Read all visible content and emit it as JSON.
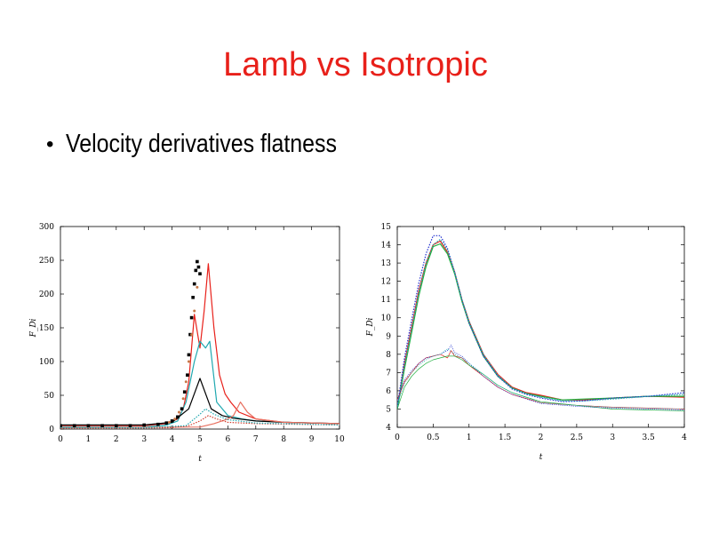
{
  "slide": {
    "title": "Lamb vs Isotropic",
    "bullet": "Velocity derivatives flatness"
  },
  "colors": {
    "title": "#e8201a"
  },
  "chart_data": [
    {
      "type": "line",
      "title": "",
      "xlabel": "t",
      "ylabel": "F_Di",
      "xlim": [
        0,
        10
      ],
      "ylim": [
        0,
        300
      ],
      "xticks": [
        0,
        1,
        2,
        3,
        4,
        5,
        6,
        7,
        8,
        9,
        10
      ],
      "yticks": [
        0,
        50,
        100,
        150,
        200,
        250,
        300
      ],
      "grid": false,
      "series": [
        {
          "color": "#e8201a",
          "style": "solid",
          "x": [
            0,
            1,
            2,
            3,
            3.8,
            4.2,
            4.4,
            4.6,
            4.8,
            5.0,
            5.15,
            5.3,
            5.5,
            5.7,
            5.9,
            6.1,
            6.4,
            7,
            8,
            10
          ],
          "y": [
            5,
            5,
            5,
            5,
            8,
            15,
            30,
            70,
            170,
            120,
            175,
            245,
            150,
            80,
            52,
            40,
            25,
            15,
            10,
            8
          ]
        },
        {
          "color": "#20a8b0",
          "style": "solid",
          "x": [
            0,
            1,
            2,
            3,
            3.8,
            4.2,
            4.5,
            4.8,
            5.0,
            5.2,
            5.35,
            5.6,
            6,
            6.5,
            7,
            8,
            10
          ],
          "y": [
            3,
            3,
            3,
            3,
            6,
            12,
            40,
            100,
            130,
            120,
            130,
            40,
            20,
            15,
            12,
            10,
            8
          ]
        },
        {
          "color": "#000000",
          "style": "solid",
          "x": [
            0,
            1,
            2,
            3,
            4,
            4.6,
            5.0,
            5.4,
            5.8,
            6.2,
            7,
            8,
            9,
            10
          ],
          "y": [
            6,
            6,
            6,
            6,
            10,
            30,
            75,
            30,
            20,
            16,
            12,
            10,
            9,
            8
          ]
        },
        {
          "color": "#e87060",
          "style": "solid",
          "x": [
            0,
            5,
            5.5,
            6,
            6.2,
            6.45,
            6.7,
            7,
            8,
            10
          ],
          "y": [
            2,
            3,
            8,
            15,
            20,
            40,
            25,
            15,
            10,
            8
          ]
        },
        {
          "color": "#d04030",
          "style": "dotted",
          "x": [
            0,
            2,
            4,
            4.6,
            5,
            5.3,
            5.6,
            6,
            7,
            10
          ],
          "y": [
            1,
            1,
            2,
            5,
            12,
            20,
            15,
            10,
            8,
            6
          ]
        },
        {
          "color": "#20a8b0",
          "style": "dotted",
          "x": [
            0,
            3,
            4.5,
            5,
            5.2,
            5.5,
            6,
            7,
            10
          ],
          "y": [
            2,
            2,
            5,
            22,
            30,
            22,
            14,
            9,
            6
          ]
        },
        {
          "color": "#000000",
          "style": "squares",
          "x": [
            0,
            0.5,
            1,
            1.5,
            2,
            2.5,
            3,
            3.5,
            3.8,
            4.0,
            4.2,
            4.35,
            4.45,
            4.55,
            4.6,
            4.65,
            4.7,
            4.75,
            4.8,
            4.85,
            4.9,
            4.95,
            5.0
          ],
          "y": [
            5,
            5,
            5,
            5,
            5,
            5,
            6,
            7,
            9,
            12,
            18,
            30,
            55,
            80,
            110,
            140,
            165,
            195,
            215,
            235,
            248,
            240,
            230
          ]
        },
        {
          "color": "#c87848",
          "style": "dots",
          "x": [
            3.9,
            4.1,
            4.25,
            4.4,
            4.5,
            4.6,
            4.7,
            4.8,
            4.9
          ],
          "y": [
            10,
            15,
            25,
            45,
            70,
            100,
            140,
            175,
            210
          ]
        }
      ]
    },
    {
      "type": "line",
      "title": "",
      "xlabel": "t",
      "ylabel": "F_Di",
      "xlim": [
        0,
        4
      ],
      "ylim": [
        4,
        15
      ],
      "xticks": [
        0,
        0.5,
        1,
        1.5,
        2,
        2.5,
        3,
        3.5,
        4
      ],
      "yticks": [
        4,
        5,
        6,
        7,
        8,
        9,
        10,
        11,
        12,
        13,
        14,
        15
      ],
      "grid": false,
      "series": [
        {
          "color": "#e8201a",
          "style": "solid",
          "x": [
            0,
            0.1,
            0.2,
            0.3,
            0.4,
            0.5,
            0.6,
            0.7,
            0.8,
            0.9,
            1.0,
            1.2,
            1.4,
            1.6,
            1.8,
            2.0,
            2.3,
            2.6,
            3.0,
            3.5,
            4.0
          ],
          "y": [
            5,
            7.5,
            9.5,
            11.5,
            13,
            14,
            14.2,
            13.6,
            12.5,
            11,
            9.8,
            8,
            6.9,
            6.2,
            5.9,
            5.75,
            5.5,
            5.5,
            5.6,
            5.7,
            5.65
          ]
        },
        {
          "color": "#20b040",
          "style": "solid",
          "x": [
            0,
            0.1,
            0.2,
            0.3,
            0.4,
            0.5,
            0.6,
            0.7,
            0.8,
            0.9,
            1.0,
            1.2,
            1.4,
            1.6,
            1.8,
            2.0,
            2.3,
            2.6,
            3.0,
            3.5,
            4.0
          ],
          "y": [
            5,
            7.2,
            9.2,
            11.2,
            12.8,
            13.9,
            14.05,
            13.5,
            12.4,
            10.9,
            9.7,
            7.9,
            6.8,
            6.15,
            5.85,
            5.7,
            5.5,
            5.55,
            5.6,
            5.7,
            5.7
          ]
        },
        {
          "color": "#2030d0",
          "style": "dotted",
          "x": [
            0,
            0.1,
            0.2,
            0.3,
            0.4,
            0.5,
            0.6,
            0.7,
            0.8,
            0.9,
            1.0,
            1.2,
            1.4,
            1.6,
            1.8,
            2.0,
            2.3,
            2.6,
            3.0,
            3.5,
            4.0
          ],
          "y": [
            5.1,
            7.8,
            9.9,
            11.9,
            13.5,
            14.5,
            14.5,
            13.8,
            12.5,
            11,
            9.7,
            7.9,
            6.8,
            6.1,
            5.8,
            5.6,
            5.4,
            5.45,
            5.6,
            5.7,
            5.9
          ]
        },
        {
          "color": "#20a8b0",
          "style": "dotted",
          "x": [
            0,
            0.1,
            0.2,
            0.3,
            0.4,
            0.5,
            0.6,
            0.7,
            0.8,
            0.9,
            1.0,
            1.2,
            1.4,
            1.6,
            1.8,
            2.0,
            2.3,
            2.6,
            3.0,
            3.5,
            4.0
          ],
          "y": [
            5,
            7.4,
            9.4,
            11.4,
            13,
            14,
            14.3,
            13.7,
            12.5,
            11,
            9.8,
            8,
            6.85,
            6.15,
            5.85,
            5.65,
            5.45,
            5.45,
            5.55,
            5.7,
            5.8
          ]
        },
        {
          "color": "#e8201a",
          "style": "thin",
          "x": [
            0,
            0.1,
            0.2,
            0.3,
            0.4,
            0.5,
            0.6,
            0.7,
            0.75,
            0.8,
            0.9,
            1.0,
            1.2,
            1.4,
            1.6,
            2.0,
            2.5,
            3.0,
            3.5,
            4.0
          ],
          "y": [
            5.5,
            6.5,
            7,
            7.5,
            7.8,
            7.9,
            8.0,
            7.8,
            8.2,
            7.9,
            7.8,
            7.4,
            6.8,
            6.2,
            5.8,
            5.35,
            5.2,
            5.1,
            5.05,
            5.0
          ]
        },
        {
          "color": "#20b040",
          "style": "thin",
          "x": [
            0,
            0.1,
            0.2,
            0.3,
            0.4,
            0.5,
            0.6,
            0.7,
            0.8,
            0.9,
            1.0,
            1.2,
            1.4,
            1.6,
            2.0,
            2.5,
            3.0,
            3.5,
            4.0
          ],
          "y": [
            5,
            6.2,
            6.8,
            7.2,
            7.5,
            7.7,
            7.8,
            7.9,
            7.9,
            7.7,
            7.4,
            6.9,
            6.3,
            5.9,
            5.4,
            5.2,
            5.0,
            4.95,
            4.9
          ]
        },
        {
          "color": "#2030d0",
          "style": "thin-dotted",
          "x": [
            0,
            0.1,
            0.2,
            0.3,
            0.4,
            0.5,
            0.6,
            0.7,
            0.75,
            0.8,
            0.9,
            1.0,
            1.2,
            1.4,
            1.6,
            2.0,
            2.5,
            3.0,
            3.5,
            4.0
          ],
          "y": [
            5.5,
            6.6,
            7.1,
            7.5,
            7.8,
            7.9,
            8.0,
            8.2,
            8.5,
            8.1,
            7.9,
            7.5,
            6.8,
            6.2,
            5.8,
            5.3,
            5.15,
            5.05,
            5.0,
            4.95
          ]
        },
        {
          "color": "#20a8b0",
          "style": "thin-dotted",
          "x": [
            0,
            0.1,
            0.2,
            0.3,
            0.4,
            0.5,
            0.6,
            0.7,
            0.8,
            0.9,
            1.0,
            1.2,
            1.4,
            1.6,
            2.0,
            2.5,
            3.0,
            3.5,
            4.0
          ],
          "y": [
            5.3,
            6.4,
            7.0,
            7.4,
            7.7,
            7.9,
            8.0,
            8.3,
            8.0,
            7.8,
            7.5,
            6.9,
            6.3,
            5.9,
            5.35,
            5.2,
            5.1,
            5.05,
            5.0
          ]
        }
      ]
    }
  ]
}
